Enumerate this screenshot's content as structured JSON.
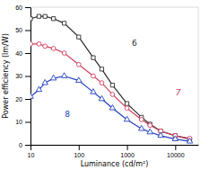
{
  "chart_data": {
    "type": "line",
    "xlabel": "Luminance (cd/m²)",
    "ylabel": "Power efficiency (lm/W)",
    "log": "x",
    "x": [
      10,
      15,
      20,
      30,
      50,
      100,
      200,
      300,
      500,
      1000,
      2000,
      3000,
      5000,
      10000,
      20000
    ],
    "xlim": [
      10,
      30000
    ],
    "xticks": [
      10,
      100,
      1000,
      10000
    ],
    "ylim": [
      0,
      60
    ],
    "yticks": [
      0,
      10,
      20,
      30,
      40,
      50,
      60
    ],
    "series": [
      {
        "name": "6",
        "color": "#2a2a2a",
        "marker": "square",
        "values": [
          55,
          56,
          56,
          55,
          53,
          47,
          38,
          33,
          26,
          18,
          12,
          9,
          6,
          4,
          2.5
        ]
      },
      {
        "name": "7",
        "color": "#d04060",
        "marker": "circle",
        "values": [
          44,
          44,
          43,
          42,
          40,
          35,
          30,
          27,
          22,
          16,
          11,
          8.5,
          6,
          4,
          2.8
        ]
      },
      {
        "name": "8",
        "color": "#2040c0",
        "marker": "triangle",
        "values": [
          21,
          24,
          27,
          29,
          30,
          28,
          23,
          20,
          16,
          11,
          7,
          5.5,
          4,
          2.5,
          1.5
        ]
      }
    ]
  }
}
